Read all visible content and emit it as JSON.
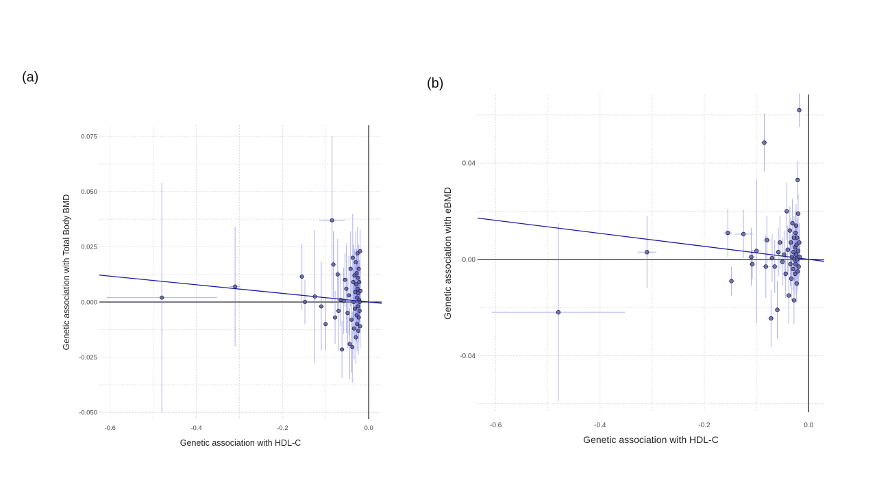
{
  "panels": {
    "a": {
      "label": "(a)"
    },
    "b": {
      "label": "(b)"
    }
  },
  "chart_data": [
    {
      "panel": "(a)",
      "type": "scatter",
      "xlabel": "Genetic association with HDL-C",
      "ylabel": "Genetic association with Total Body BMD",
      "xlim": [
        -0.625,
        0.03
      ],
      "ylim": [
        -0.053,
        0.08
      ],
      "x_ticks": [
        -0.6,
        -0.4,
        -0.2,
        0.0
      ],
      "x_tick_labels": [
        "-0.6",
        "-0.4",
        "-0.2",
        "0.0"
      ],
      "y_ticks": [
        -0.05,
        -0.025,
        0.0,
        0.025,
        0.05,
        0.075
      ],
      "y_tick_labels": [
        "-0.050",
        "-0.025",
        "0.000",
        "0.025",
        "0.050",
        "0.075"
      ],
      "grid": true,
      "fit_line": {
        "slope": -0.0195,
        "intercept": 0.0
      },
      "points": [
        {
          "x": -0.48,
          "y": 0.002,
          "xerr": 0.128,
          "yerr": 0.052
        },
        {
          "x": -0.31,
          "y": 0.007,
          "xerr": 0.012,
          "yerr": 0.027
        },
        {
          "x": -0.155,
          "y": 0.0115,
          "xerr": 0.006,
          "yerr": 0.015
        },
        {
          "x": -0.148,
          "y": 0.0,
          "xerr": 0.005,
          "yerr": 0.01
        },
        {
          "x": -0.125,
          "y": 0.0025,
          "xerr": 0.006,
          "yerr": 0.03
        },
        {
          "x": -0.11,
          "y": -0.002,
          "xerr": 0.006,
          "yerr": 0.02
        },
        {
          "x": -0.1,
          "y": -0.01,
          "xerr": 0.005,
          "yerr": 0.012
        },
        {
          "x": -0.085,
          "y": 0.037,
          "xerr": 0.03,
          "yerr": 0.038
        },
        {
          "x": -0.082,
          "y": 0.017,
          "xerr": 0.007,
          "yerr": 0.015
        },
        {
          "x": -0.078,
          "y": -0.007,
          "xerr": 0.005,
          "yerr": 0.012
        },
        {
          "x": -0.072,
          "y": 0.0125,
          "xerr": 0.005,
          "yerr": 0.016
        },
        {
          "x": -0.07,
          "y": -0.004,
          "xerr": 0.006,
          "yerr": 0.018
        },
        {
          "x": -0.065,
          "y": 0.001,
          "xerr": 0.004,
          "yerr": 0.012
        },
        {
          "x": -0.062,
          "y": -0.0215,
          "xerr": 0.005,
          "yerr": 0.013
        },
        {
          "x": -0.058,
          "y": 0.0005,
          "xerr": 0.004,
          "yerr": 0.015
        },
        {
          "x": -0.055,
          "y": 0.01,
          "xerr": 0.004,
          "yerr": 0.012
        },
        {
          "x": -0.052,
          "y": 0.006,
          "xerr": 0.004,
          "yerr": 0.02
        },
        {
          "x": -0.049,
          "y": -0.005,
          "xerr": 0.004,
          "yerr": 0.016
        },
        {
          "x": -0.046,
          "y": 0.003,
          "xerr": 0.004,
          "yerr": 0.018
        },
        {
          "x": -0.044,
          "y": -0.019,
          "xerr": 0.004,
          "yerr": 0.016
        },
        {
          "x": -0.042,
          "y": 0.015,
          "xerr": 0.004,
          "yerr": 0.017
        },
        {
          "x": -0.04,
          "y": -0.008,
          "xerr": 0.004,
          "yerr": 0.024
        },
        {
          "x": -0.038,
          "y": -0.0205,
          "xerr": 0.004,
          "yerr": 0.016
        },
        {
          "x": -0.037,
          "y": 0.02,
          "xerr": 0.004,
          "yerr": 0.02
        },
        {
          "x": -0.036,
          "y": 0.009,
          "xerr": 0.003,
          "yerr": 0.017
        },
        {
          "x": -0.035,
          "y": 0.0,
          "xerr": 0.003,
          "yerr": 0.015
        },
        {
          "x": -0.034,
          "y": -0.012,
          "xerr": 0.003,
          "yerr": 0.014
        },
        {
          "x": -0.033,
          "y": 0.012,
          "xerr": 0.003,
          "yerr": 0.012
        },
        {
          "x": -0.032,
          "y": -0.003,
          "xerr": 0.003,
          "yerr": 0.013
        },
        {
          "x": -0.031,
          "y": 0.0045,
          "xerr": 0.003,
          "yerr": 0.012
        },
        {
          "x": -0.03,
          "y": -0.016,
          "xerr": 0.003,
          "yerr": 0.012
        },
        {
          "x": -0.03,
          "y": 0.018,
          "xerr": 0.003,
          "yerr": 0.014
        },
        {
          "x": -0.029,
          "y": 0.008,
          "xerr": 0.003,
          "yerr": 0.012
        },
        {
          "x": -0.028,
          "y": -0.006,
          "xerr": 0.003,
          "yerr": 0.012
        },
        {
          "x": -0.028,
          "y": 0.013,
          "xerr": 0.003,
          "yerr": 0.011
        },
        {
          "x": -0.027,
          "y": 0.002,
          "xerr": 0.003,
          "yerr": 0.012
        },
        {
          "x": -0.027,
          "y": -0.01,
          "xerr": 0.003,
          "yerr": 0.012
        },
        {
          "x": -0.026,
          "y": 0.022,
          "xerr": 0.003,
          "yerr": 0.012
        },
        {
          "x": -0.026,
          "y": 0.006,
          "xerr": 0.003,
          "yerr": 0.011
        },
        {
          "x": -0.025,
          "y": -0.002,
          "xerr": 0.003,
          "yerr": 0.011
        },
        {
          "x": -0.025,
          "y": 0.011,
          "xerr": 0.003,
          "yerr": 0.011
        },
        {
          "x": -0.024,
          "y": -0.013,
          "xerr": 0.003,
          "yerr": 0.011
        },
        {
          "x": -0.024,
          "y": 0.004,
          "xerr": 0.003,
          "yerr": 0.01
        },
        {
          "x": -0.023,
          "y": 0.015,
          "xerr": 0.003,
          "yerr": 0.011
        },
        {
          "x": -0.023,
          "y": -0.007,
          "xerr": 0.003,
          "yerr": 0.01
        },
        {
          "x": -0.022,
          "y": 0.001,
          "xerr": 0.003,
          "yerr": 0.01
        },
        {
          "x": -0.022,
          "y": 0.009,
          "xerr": 0.003,
          "yerr": 0.01
        },
        {
          "x": -0.021,
          "y": -0.004,
          "xerr": 0.003,
          "yerr": 0.01
        },
        {
          "x": -0.021,
          "y": 0.0,
          "xerr": 0.003,
          "yerr": 0.01
        },
        {
          "x": -0.02,
          "y": 0.023,
          "xerr": 0.003,
          "yerr": 0.01
        },
        {
          "x": -0.02,
          "y": -0.011,
          "xerr": 0.003,
          "yerr": 0.01
        },
        {
          "x": -0.019,
          "y": 0.005,
          "xerr": 0.003,
          "yerr": 0.009
        }
      ]
    },
    {
      "panel": "(b)",
      "type": "scatter",
      "xlabel": "Genetic association with HDL-C",
      "ylabel": "Genetic association with eBMD",
      "xlim": [
        -0.635,
        0.03
      ],
      "ylim": [
        -0.0635,
        0.0685
      ],
      "x_ticks": [
        -0.6,
        -0.4,
        -0.2,
        0.0
      ],
      "x_tick_labels": [
        "-0.6",
        "-0.4",
        "-0.2",
        "0.0"
      ],
      "y_ticks": [
        -0.04,
        0.0,
        0.04
      ],
      "y_tick_labels": [
        "-0.04",
        "0.00",
        "0.04"
      ],
      "grid": true,
      "fit_line": {
        "slope": -0.027,
        "intercept": 0.0
      },
      "points": [
        {
          "x": -0.48,
          "y": -0.022,
          "xerr": 0.128,
          "yerr": 0.037
        },
        {
          "x": -0.31,
          "y": 0.003,
          "xerr": 0.018,
          "yerr": 0.015
        },
        {
          "x": -0.155,
          "y": 0.011,
          "xerr": 0.008,
          "yerr": 0.01
        },
        {
          "x": -0.148,
          "y": -0.009,
          "xerr": 0.006,
          "yerr": 0.006
        },
        {
          "x": -0.125,
          "y": 0.0105,
          "xerr": 0.018,
          "yerr": 0.01
        },
        {
          "x": -0.11,
          "y": 0.001,
          "xerr": 0.008,
          "yerr": 0.012
        },
        {
          "x": -0.108,
          "y": -0.002,
          "xerr": 0.006,
          "yerr": 0.006
        },
        {
          "x": -0.1,
          "y": 0.0035,
          "xerr": 0.01,
          "yerr": 0.03
        },
        {
          "x": -0.085,
          "y": 0.0485,
          "xerr": 0.006,
          "yerr": 0.012
        },
        {
          "x": -0.082,
          "y": -0.003,
          "xerr": 0.007,
          "yerr": 0.013
        },
        {
          "x": -0.08,
          "y": 0.008,
          "xerr": 0.007,
          "yerr": 0.01
        },
        {
          "x": -0.072,
          "y": -0.0245,
          "xerr": 0.007,
          "yerr": 0.012
        },
        {
          "x": -0.07,
          "y": 0.0005,
          "xerr": 0.006,
          "yerr": 0.01
        },
        {
          "x": -0.065,
          "y": -0.003,
          "xerr": 0.005,
          "yerr": 0.011
        },
        {
          "x": -0.06,
          "y": -0.021,
          "xerr": 0.005,
          "yerr": 0.012
        },
        {
          "x": -0.058,
          "y": 0.003,
          "xerr": 0.005,
          "yerr": 0.01
        },
        {
          "x": -0.055,
          "y": 0.007,
          "xerr": 0.005,
          "yerr": 0.011
        },
        {
          "x": -0.05,
          "y": -0.001,
          "xerr": 0.004,
          "yerr": 0.01
        },
        {
          "x": -0.047,
          "y": 0.002,
          "xerr": 0.004,
          "yerr": 0.01
        },
        {
          "x": -0.044,
          "y": -0.006,
          "xerr": 0.004,
          "yerr": 0.01
        },
        {
          "x": -0.042,
          "y": 0.02,
          "xerr": 0.004,
          "yerr": 0.012
        },
        {
          "x": -0.04,
          "y": 0.004,
          "xerr": 0.004,
          "yerr": 0.01
        },
        {
          "x": -0.038,
          "y": -0.015,
          "xerr": 0.004,
          "yerr": 0.012
        },
        {
          "x": -0.036,
          "y": 0.012,
          "xerr": 0.004,
          "yerr": 0.01
        },
        {
          "x": -0.035,
          "y": -0.002,
          "xerr": 0.003,
          "yerr": 0.009
        },
        {
          "x": -0.034,
          "y": 0.007,
          "xerr": 0.003,
          "yerr": 0.01
        },
        {
          "x": -0.033,
          "y": -0.008,
          "xerr": 0.003,
          "yerr": 0.009
        },
        {
          "x": -0.032,
          "y": 0.001,
          "xerr": 0.003,
          "yerr": 0.009
        },
        {
          "x": -0.031,
          "y": 0.015,
          "xerr": 0.003,
          "yerr": 0.01
        },
        {
          "x": -0.03,
          "y": -0.004,
          "xerr": 0.003,
          "yerr": 0.009
        },
        {
          "x": -0.029,
          "y": 0.003,
          "xerr": 0.003,
          "yerr": 0.009
        },
        {
          "x": -0.028,
          "y": -0.017,
          "xerr": 0.003,
          "yerr": 0.01
        },
        {
          "x": -0.028,
          "y": 0.009,
          "xerr": 0.003,
          "yerr": 0.009
        },
        {
          "x": -0.027,
          "y": 0.0,
          "xerr": 0.003,
          "yerr": 0.009
        },
        {
          "x": -0.026,
          "y": 0.005,
          "xerr": 0.003,
          "yerr": 0.009
        },
        {
          "x": -0.026,
          "y": -0.006,
          "xerr": 0.003,
          "yerr": 0.009
        },
        {
          "x": -0.025,
          "y": 0.011,
          "xerr": 0.003,
          "yerr": 0.009
        },
        {
          "x": -0.025,
          "y": -0.002,
          "xerr": 0.003,
          "yerr": 0.008
        },
        {
          "x": -0.024,
          "y": 0.002,
          "xerr": 0.003,
          "yerr": 0.008
        },
        {
          "x": -0.024,
          "y": 0.014,
          "xerr": 0.003,
          "yerr": 0.009
        },
        {
          "x": -0.023,
          "y": -0.01,
          "xerr": 0.003,
          "yerr": 0.008
        },
        {
          "x": -0.023,
          "y": 0.006,
          "xerr": 0.003,
          "yerr": 0.008
        },
        {
          "x": -0.022,
          "y": 0.0,
          "xerr": 0.003,
          "yerr": 0.008
        },
        {
          "x": -0.022,
          "y": 0.009,
          "xerr": 0.003,
          "yerr": 0.008
        },
        {
          "x": -0.021,
          "y": 0.033,
          "xerr": 0.003,
          "yerr": 0.008
        },
        {
          "x": -0.021,
          "y": -0.005,
          "xerr": 0.003,
          "yerr": 0.008
        },
        {
          "x": -0.02,
          "y": 0.0035,
          "xerr": 0.003,
          "yerr": 0.008
        },
        {
          "x": -0.02,
          "y": 0.019,
          "xerr": 0.003,
          "yerr": 0.008
        },
        {
          "x": -0.019,
          "y": -0.003,
          "xerr": 0.003,
          "yerr": 0.008
        },
        {
          "x": -0.018,
          "y": 0.062,
          "xerr": 0.003,
          "yerr": 0.007
        },
        {
          "x": -0.018,
          "y": 0.007,
          "xerr": 0.003,
          "yerr": 0.008
        },
        {
          "x": -0.017,
          "y": 0.001,
          "xerr": 0.003,
          "yerr": 0.008
        }
      ]
    }
  ]
}
